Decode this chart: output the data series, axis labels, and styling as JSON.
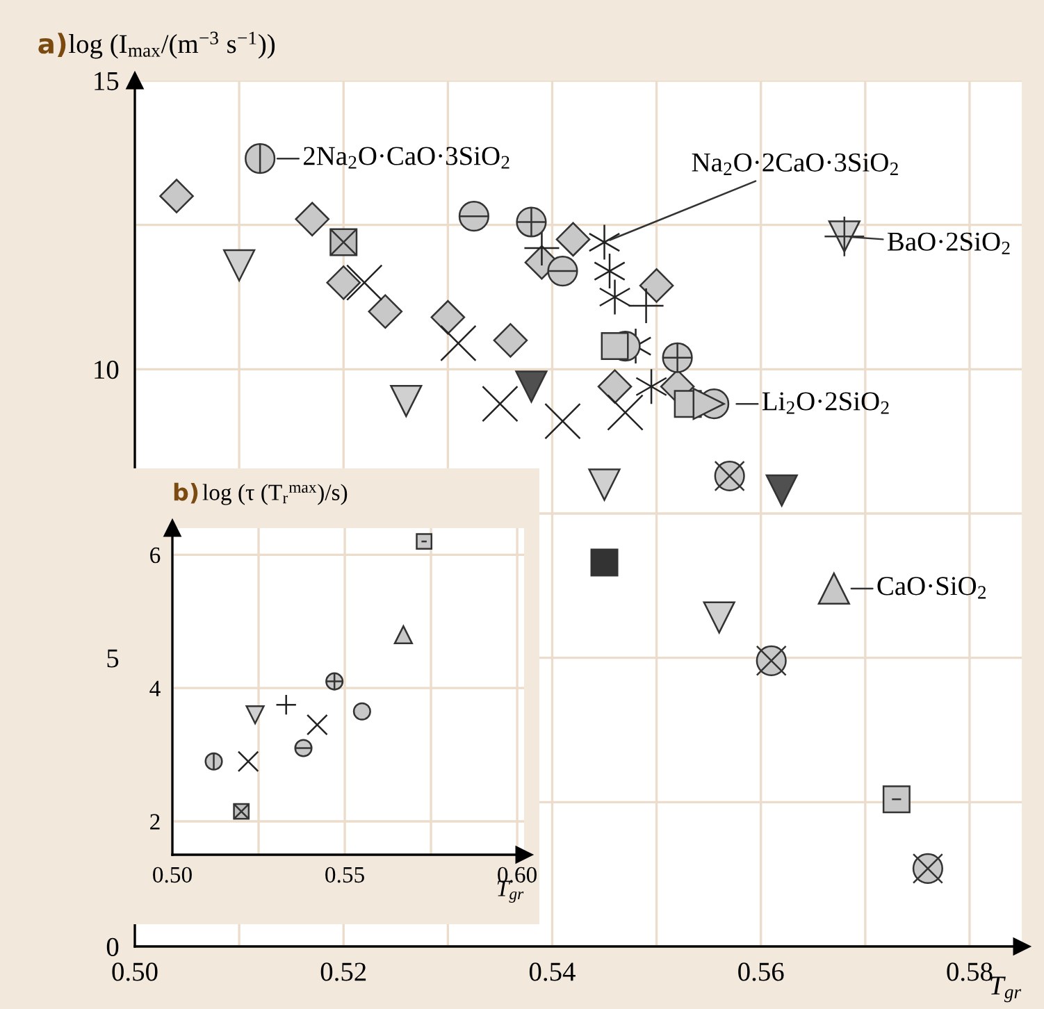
{
  "chart_data": [
    {
      "type": "scatter",
      "title": "a)",
      "ylabel": "log (I$_{max}$/(m$^{−3}$ s$^{−1}$))",
      "xlabel": "T$_{gr}$",
      "xlim": [
        0.5,
        0.585
      ],
      "ylim": [
        0,
        15
      ],
      "xticks": [
        {
          "value": 0.5,
          "label": "0.50"
        },
        {
          "value": 0.51,
          "label": null
        },
        {
          "value": 0.52,
          "label": "0.52"
        },
        {
          "value": 0.53,
          "label": null
        },
        {
          "value": 0.54,
          "label": "0.54"
        },
        {
          "value": 0.55,
          "label": null
        },
        {
          "value": 0.56,
          "label": "0.56"
        },
        {
          "value": 0.57,
          "label": null
        },
        {
          "value": 0.58,
          "label": "0.58"
        }
      ],
      "yticks": [
        0,
        {
          "value": 2.5,
          "label": null
        },
        5,
        {
          "value": 7.5,
          "label": null
        },
        10,
        {
          "value": 12.5,
          "label": null
        },
        15
      ],
      "grid": true,
      "series": [
        {
          "marker": "diamond",
          "color": "#c8c8c8",
          "x": [
            0.504,
            0.517,
            0.52,
            0.524,
            0.53,
            0.536,
            0.539,
            0.542,
            0.546,
            0.55,
            0.552
          ],
          "values": [
            13.0,
            12.6,
            11.5,
            11.0,
            10.9,
            10.5,
            11.85,
            12.25,
            9.7,
            11.45,
            9.7
          ]
        },
        {
          "marker": "triangle",
          "color": "#d0d0d0",
          "x": [
            0.51,
            0.526,
            0.545,
            0.556
          ],
          "values": [
            11.8,
            9.45,
            8.0,
            5.7
          ]
        },
        {
          "marker": "triangle",
          "color": "#505050",
          "x": [
            0.538,
            0.562
          ],
          "values": [
            9.7,
            7.9
          ]
        },
        {
          "marker": "cross",
          "color": "#222222",
          "x": [
            0.522,
            0.531,
            0.535,
            0.541,
            0.547
          ],
          "values": [
            11.5,
            10.45,
            9.4,
            9.1,
            9.25
          ]
        },
        {
          "marker": "cross",
          "color": "#222222",
          "x": [
            0.545,
            0.5455,
            0.546,
            0.548,
            0.5495
          ],
          "values": [
            12.2,
            11.7,
            11.25,
            10.4,
            9.7
          ]
        },
        {
          "marker": "cross",
          "color": "#222222",
          "x": [
            0.539,
            0.549
          ],
          "values": [
            12.1,
            11.1
          ]
        },
        {
          "marker": "circle",
          "color": "#c8c8c8",
          "x": [
            0.547,
            0.5555
          ],
          "values": [
            10.4,
            9.4
          ]
        },
        {
          "marker": "square",
          "color": "#c8c8c8",
          "x": [
            0.546,
            0.553
          ],
          "values": [
            10.4,
            9.4
          ]
        },
        {
          "marker": "triangle",
          "color": "#c8c8c8",
          "x": [
            0.555
          ],
          "values": [
            9.4
          ]
        },
        {
          "marker": "square",
          "color": "#333333",
          "x": [
            0.545
          ],
          "values": [
            6.65
          ]
        },
        {
          "marker": "square",
          "color": "#bdbdbd",
          "x": [
            0.52
          ],
          "values": [
            12.2
          ]
        },
        {
          "marker": "square",
          "color": "#c8c8c8",
          "x": [
            0.573
          ],
          "values": [
            2.55
          ]
        },
        {
          "marker": "circle",
          "color": "#c8c8c8",
          "x": [
            0.512
          ],
          "values": [
            13.65
          ]
        },
        {
          "marker": "circle",
          "color": "#c8c8c8",
          "x": [
            0.5325,
            0.541
          ],
          "values": [
            12.65,
            11.7
          ]
        },
        {
          "marker": "circle",
          "color": "#c8c8c8",
          "x": [
            0.538,
            0.552
          ],
          "values": [
            12.55,
            10.2
          ]
        },
        {
          "marker": "circle",
          "color": "#c8c8c8",
          "x": [
            0.557,
            0.561,
            0.576
          ],
          "values": [
            8.15,
            4.95,
            1.35
          ]
        },
        {
          "marker": "triangle",
          "color": "#c8c8c8",
          "x": [
            0.567
          ],
          "values": [
            6.2
          ]
        },
        {
          "marker": "triangle",
          "color": "#d0d0d0",
          "x": [
            0.568
          ],
          "values": [
            12.3
          ]
        }
      ],
      "annotations": [
        {
          "text": "2Na$_{2}$O·CaO·3SiO$_{2}$",
          "x": 0.512,
          "y": 13.65
        },
        {
          "text": "Na$_{2}$O·2CaO·3SiO$_{2}$",
          "x": 0.545,
          "y": 12.2
        },
        {
          "text": "BaO·2SiO$_{2}$",
          "x": 0.568,
          "y": 12.3
        },
        {
          "text": "Li$_{2}$O·2SiO$_{2}$",
          "x": 0.556,
          "y": 9.4
        },
        {
          "text": "CaO·SiO$_{2}$",
          "x": 0.567,
          "y": 6.2
        }
      ]
    },
    {
      "type": "scatter",
      "title": "b)",
      "ylabel": "log (τ (T$_{r}$$^{max}$)/s)",
      "xlabel": "T$_{gr}$",
      "xlim": [
        0.5,
        0.602
      ],
      "ylim": [
        1.5,
        6.4
      ],
      "xticks": [
        {
          "value": 0.5,
          "label": "0.50"
        },
        {
          "value": 0.525,
          "label": null
        },
        {
          "value": 0.55,
          "label": "0.55"
        },
        {
          "value": 0.575,
          "label": null
        },
        {
          "value": 0.6,
          "label": "0.60"
        }
      ],
      "yticks": [
        2,
        4,
        6
      ],
      "grid": true,
      "series": [
        {
          "marker": "square",
          "color": "#c8c8c8",
          "x": [
            0.573
          ],
          "values": [
            6.2
          ]
        },
        {
          "marker": "triangle",
          "color": "#c8c8c8",
          "x": [
            0.567
          ],
          "values": [
            4.8
          ]
        },
        {
          "marker": "circle",
          "color": "#c8c8c8",
          "x": [
            0.547
          ],
          "values": [
            4.1
          ]
        },
        {
          "marker": "circle",
          "color": "#c8c8c8",
          "x": [
            0.555
          ],
          "values": [
            3.65
          ]
        },
        {
          "marker": "cross",
          "color": "#222222",
          "x": [
            0.533
          ],
          "values": [
            3.75
          ]
        },
        {
          "marker": "triangle",
          "color": "#d0d0d0",
          "x": [
            0.524
          ],
          "values": [
            3.6
          ]
        },
        {
          "marker": "cross",
          "color": "#222222",
          "x": [
            0.542,
            0.522
          ],
          "values": [
            3.45,
            2.9
          ]
        },
        {
          "marker": "circle",
          "color": "#c8c8c8",
          "x": [
            0.538
          ],
          "values": [
            3.1
          ]
        },
        {
          "marker": "circle",
          "color": "#c8c8c8",
          "x": [
            0.512
          ],
          "values": [
            2.9
          ]
        },
        {
          "marker": "square",
          "color": "#bdbdbd",
          "x": [
            0.52
          ],
          "values": [
            2.15
          ]
        }
      ]
    }
  ]
}
